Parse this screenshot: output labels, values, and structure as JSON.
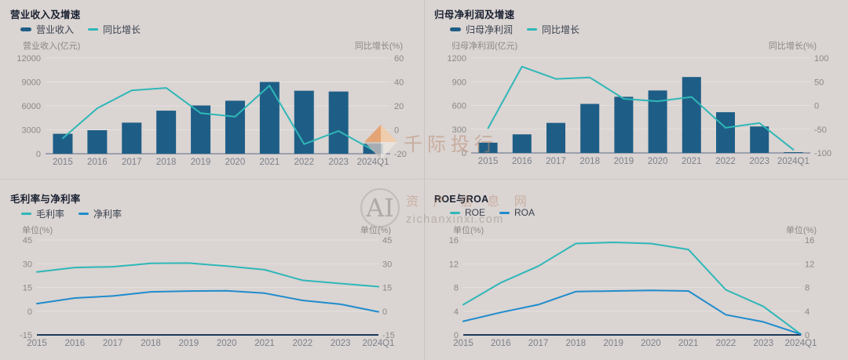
{
  "watermarks": {
    "brand": "千际投行",
    "ai": "AI",
    "site": "资 产 信 息 网",
    "url": "zichanxinxi.com"
  },
  "colors": {
    "background": "#dad4d2",
    "bar": "#1e5e86",
    "teal": "#2fb7b8",
    "blue": "#1f8ccd",
    "grid": "#e6e0de",
    "axis_top": "#9aa0ac",
    "axis_dark": "#1e3a5c",
    "title": "#1b2232",
    "legend_text": "#39414f",
    "tick_text": "#8b8987",
    "xlabel_text": "#7c818b"
  },
  "chart_data": [
    {
      "id": "revenue-growth",
      "type": "combo-bar-line",
      "title": "营业收入及增速",
      "categories": [
        "2015",
        "2016",
        "2017",
        "2018",
        "2019",
        "2020",
        "2021",
        "2022",
        "2023",
        "2024Q1"
      ],
      "series": [
        {
          "name": "营业收入",
          "kind": "bar",
          "axis": "left",
          "color": "bar",
          "values": [
            2500,
            2950,
            3900,
            5400,
            6050,
            6650,
            9000,
            7900,
            7800,
            1250
          ]
        },
        {
          "name": "同比增长",
          "kind": "line",
          "axis": "right",
          "color": "teal",
          "values": [
            -7,
            18,
            33,
            35,
            14,
            11,
            37,
            -12,
            -1,
            -17
          ]
        }
      ],
      "left_axis": {
        "label": "营业收入(亿元)",
        "ticks": [
          12000,
          9000,
          6000,
          3000,
          0
        ],
        "min": 0,
        "max": 12000
      },
      "right_axis": {
        "label": "同比增长(%)",
        "ticks": [
          60,
          40,
          20,
          0,
          -20
        ],
        "min": -20,
        "max": 60
      },
      "grid": true,
      "legend_position": "top-left"
    },
    {
      "id": "net-profit-growth",
      "type": "combo-bar-line",
      "title": "归母净利润及增速",
      "categories": [
        "2015",
        "2016",
        "2017",
        "2018",
        "2019",
        "2020",
        "2021",
        "2022",
        "2023",
        "2024Q1"
      ],
      "series": [
        {
          "name": "归母净利润",
          "kind": "bar",
          "axis": "left",
          "color": "bar",
          "values": [
            130,
            235,
            380,
            620,
            710,
            790,
            960,
            515,
            335,
            8
          ]
        },
        {
          "name": "同比增长",
          "kind": "line",
          "axis": "right",
          "color": "teal",
          "values": [
            -48,
            82,
            56,
            59,
            14,
            9,
            18,
            -47,
            -37,
            -93
          ]
        }
      ],
      "left_axis": {
        "label": "归母净利润(亿元)",
        "ticks": [
          1200,
          900,
          600,
          300,
          0
        ],
        "min": 0,
        "max": 1200
      },
      "right_axis": {
        "label": "同比增长(%)",
        "ticks": [
          100,
          50,
          0,
          -50,
          -100
        ],
        "min": -100,
        "max": 100
      },
      "grid": true,
      "legend_position": "top-left"
    },
    {
      "id": "margins",
      "type": "line",
      "title": "毛利率与净利率",
      "categories": [
        "2015",
        "2016",
        "2017",
        "2018",
        "2019",
        "2020",
        "2021",
        "2022",
        "2023",
        "2024Q1"
      ],
      "series": [
        {
          "name": "毛利率",
          "kind": "line",
          "axis": "left",
          "color": "teal",
          "values": [
            24.8,
            27.6,
            28.1,
            30.2,
            30.4,
            28.5,
            26.2,
            19.5,
            17.5,
            15.5
          ]
        },
        {
          "name": "净利率",
          "kind": "line",
          "axis": "left",
          "color": "blue",
          "values": [
            4.8,
            8.3,
            9.6,
            12.2,
            12.7,
            12.9,
            11.4,
            6.8,
            4.4,
            -0.4
          ]
        }
      ],
      "left_axis": {
        "label": "单位(%)",
        "ticks": [
          45,
          30,
          15,
          0,
          -15
        ],
        "min": -15,
        "max": 45
      },
      "right_axis": {
        "label": "单位(%)",
        "ticks": [
          45,
          30,
          15,
          0,
          -15
        ],
        "min": -15,
        "max": 45
      },
      "grid": true,
      "legend_position": "top-left"
    },
    {
      "id": "roe-roa",
      "type": "line",
      "title": "ROE与ROA",
      "categories": [
        "2015",
        "2016",
        "2017",
        "2018",
        "2019",
        "2020",
        "2021",
        "2022",
        "2023",
        "2024Q1"
      ],
      "series": [
        {
          "name": "ROE",
          "kind": "line",
          "axis": "left",
          "color": "teal",
          "values": [
            5.1,
            8.8,
            11.6,
            15.4,
            15.6,
            15.4,
            14.4,
            7.6,
            4.8,
            0.1
          ]
        },
        {
          "name": "ROA",
          "kind": "line",
          "axis": "left",
          "color": "blue",
          "values": [
            2.3,
            3.8,
            5.1,
            7.3,
            7.4,
            7.5,
            7.4,
            3.4,
            2.2,
            0.1
          ]
        }
      ],
      "left_axis": {
        "label": "单位(%)",
        "ticks": [
          16,
          12,
          8,
          4,
          0
        ],
        "min": 0,
        "max": 16
      },
      "right_axis": {
        "label": "单位(%)",
        "ticks": [
          16,
          12,
          8,
          4,
          0
        ],
        "min": 0,
        "max": 16
      },
      "grid": true,
      "legend_position": "top-left"
    }
  ]
}
